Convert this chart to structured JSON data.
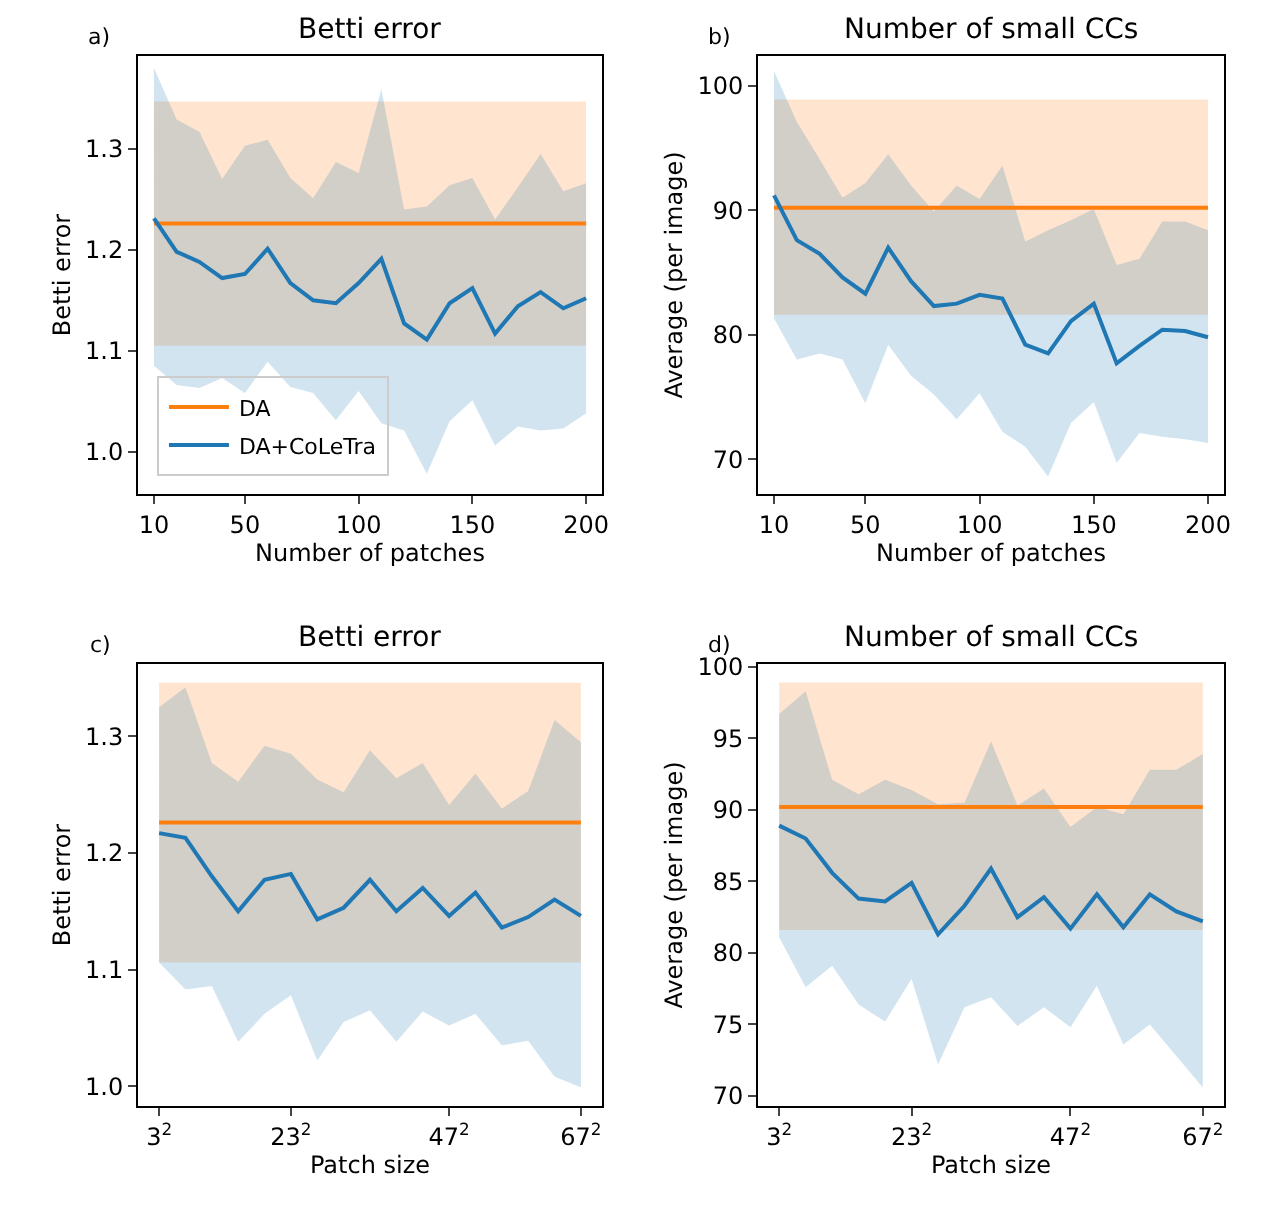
{
  "chart_data": [
    {
      "type": "line",
      "title": "Betti error",
      "xlabel": "Number of patches",
      "ylabel": "Betti error",
      "annotations": [
        "a)"
      ],
      "legend": "bottom left",
      "x": [
        10,
        20,
        30,
        40,
        50,
        60,
        70,
        80,
        90,
        100,
        110,
        120,
        130,
        140,
        150,
        160,
        170,
        180,
        190,
        200
      ],
      "xlim": [
        3,
        207
      ],
      "xticks": [
        10,
        50,
        100,
        150,
        200
      ],
      "ylim": [
        0.958,
        1.392
      ],
      "yticks": [
        {
          "value": 1.0,
          "label": "1.0"
        },
        1.1,
        1.2,
        1.3
      ],
      "series": [
        {
          "name": "DA",
          "color": "#ff7f0e",
          "values": [
            1.226,
            1.226,
            1.226,
            1.226,
            1.226,
            1.226,
            1.226,
            1.226,
            1.226,
            1.226,
            1.226,
            1.226,
            1.226,
            1.226,
            1.226,
            1.226,
            1.226,
            1.226,
            1.226,
            1.226
          ],
          "lower": [
            1.105,
            1.105,
            1.105,
            1.105,
            1.105,
            1.105,
            1.105,
            1.105,
            1.105,
            1.105,
            1.105,
            1.105,
            1.105,
            1.105,
            1.105,
            1.105,
            1.105,
            1.105,
            1.105,
            1.105
          ],
          "upper": [
            1.347,
            1.347,
            1.347,
            1.347,
            1.347,
            1.347,
            1.347,
            1.347,
            1.347,
            1.347,
            1.347,
            1.347,
            1.347,
            1.347,
            1.347,
            1.347,
            1.347,
            1.347,
            1.347,
            1.347
          ]
        },
        {
          "name": "DA+CoLeTra",
          "color": "#1f77b4",
          "values": [
            1.231,
            1.198,
            1.188,
            1.172,
            1.176,
            1.201,
            1.167,
            1.15,
            1.147,
            1.167,
            1.191,
            1.127,
            1.111,
            1.147,
            1.162,
            1.117,
            1.144,
            1.158,
            1.142,
            1.152
          ],
          "lower": [
            1.085,
            1.066,
            1.063,
            1.073,
            1.058,
            1.089,
            1.064,
            1.058,
            1.031,
            1.06,
            1.028,
            1.021,
            0.978,
            1.03,
            1.051,
            1.006,
            1.025,
            1.021,
            1.023,
            1.038
          ],
          "upper": [
            1.38,
            1.329,
            1.317,
            1.27,
            1.303,
            1.309,
            1.271,
            1.251,
            1.287,
            1.276,
            1.359,
            1.24,
            1.243,
            1.264,
            1.271,
            1.23,
            1.262,
            1.295,
            1.258,
            1.266
          ]
        }
      ]
    },
    {
      "type": "line",
      "title": "Number of small CCs",
      "xlabel": "Number of patches",
      "ylabel": "Average (per image)",
      "annotations": [
        "b)"
      ],
      "x": [
        10,
        20,
        30,
        40,
        50,
        60,
        70,
        80,
        90,
        100,
        110,
        120,
        130,
        140,
        150,
        160,
        170,
        180,
        190,
        200
      ],
      "xlim": [
        3,
        207
      ],
      "xticks": [
        10,
        50,
        100,
        150,
        200
      ],
      "ylim": [
        67.2,
        102.4
      ],
      "yticks": [
        70,
        80,
        90,
        100
      ],
      "series": [
        {
          "color": "#ff7f0e",
          "values": [
            90.2,
            90.2,
            90.2,
            90.2,
            90.2,
            90.2,
            90.2,
            90.2,
            90.2,
            90.2,
            90.2,
            90.2,
            90.2,
            90.2,
            90.2,
            90.2,
            90.2,
            90.2,
            90.2,
            90.2
          ],
          "lower": [
            81.6,
            81.6,
            81.6,
            81.6,
            81.6,
            81.6,
            81.6,
            81.6,
            81.6,
            81.6,
            81.6,
            81.6,
            81.6,
            81.6,
            81.6,
            81.6,
            81.6,
            81.6,
            81.6,
            81.6
          ],
          "upper": [
            98.9,
            98.9,
            98.9,
            98.9,
            98.9,
            98.9,
            98.9,
            98.9,
            98.9,
            98.9,
            98.9,
            98.9,
            98.9,
            98.9,
            98.9,
            98.9,
            98.9,
            98.9,
            98.9,
            98.9
          ]
        },
        {
          "color": "#1f77b4",
          "values": [
            91.2,
            87.6,
            86.5,
            84.6,
            83.3,
            87.0,
            84.3,
            82.3,
            82.5,
            83.2,
            82.9,
            79.2,
            78.5,
            81.1,
            82.5,
            77.7,
            79.1,
            80.4,
            80.3,
            79.8
          ],
          "lower": [
            81.3,
            78.0,
            78.5,
            78.0,
            74.5,
            79.2,
            76.7,
            75.2,
            73.2,
            75.3,
            72.2,
            71.0,
            68.6,
            72.9,
            74.6,
            69.7,
            72.1,
            71.8,
            71.6,
            71.3
          ],
          "upper": [
            101.2,
            97.1,
            94.1,
            91.0,
            92.2,
            94.5,
            92.0,
            89.9,
            92.0,
            90.9,
            93.6,
            87.5,
            88.4,
            89.2,
            90.1,
            85.6,
            86.1,
            89.1,
            89.1,
            88.4
          ]
        }
      ]
    },
    {
      "type": "line",
      "title": "Betti error",
      "xlabel": "Patch size",
      "ylabel": "Betti error",
      "annotations": [
        "c)"
      ],
      "categories": [
        "3$^{2}$",
        null,
        null,
        null,
        null,
        "23$^{2}$",
        null,
        null,
        null,
        null,
        null,
        "47$^{2}$",
        null,
        null,
        null,
        null,
        "67$^{2}$"
      ],
      "ylim": [
        0.983,
        1.362
      ],
      "yticks": [
        {
          "value": 1.0,
          "label": "1.0"
        },
        1.1,
        1.2,
        1.3
      ],
      "series": [
        {
          "color": "#ff7f0e",
          "values": [
            1.226,
            1.226,
            1.226,
            1.226,
            1.226,
            1.226,
            1.226,
            1.226,
            1.226,
            1.226,
            1.226,
            1.226,
            1.226,
            1.226,
            1.226,
            1.226,
            1.226
          ],
          "lower": [
            1.106,
            1.106,
            1.106,
            1.106,
            1.106,
            1.106,
            1.106,
            1.106,
            1.106,
            1.106,
            1.106,
            1.106,
            1.106,
            1.106,
            1.106,
            1.106,
            1.106
          ],
          "upper": [
            1.346,
            1.346,
            1.346,
            1.346,
            1.346,
            1.346,
            1.346,
            1.346,
            1.346,
            1.346,
            1.346,
            1.346,
            1.346,
            1.346,
            1.346,
            1.346,
            1.346
          ]
        },
        {
          "color": "#1f77b4",
          "values": [
            1.217,
            1.213,
            1.18,
            1.15,
            1.177,
            1.182,
            1.143,
            1.153,
            1.177,
            1.15,
            1.17,
            1.146,
            1.166,
            1.136,
            1.145,
            1.16,
            1.146
          ],
          "lower": [
            1.106,
            1.083,
            1.086,
            1.038,
            1.062,
            1.078,
            1.022,
            1.055,
            1.065,
            1.038,
            1.064,
            1.052,
            1.062,
            1.035,
            1.039,
            1.008,
            0.999
          ],
          "upper": [
            1.325,
            1.342,
            1.277,
            1.261,
            1.292,
            1.285,
            1.263,
            1.252,
            1.288,
            1.264,
            1.277,
            1.241,
            1.268,
            1.238,
            1.253,
            1.314,
            1.295
          ]
        }
      ]
    },
    {
      "type": "line",
      "title": "Number of small CCs",
      "xlabel": "Patch size",
      "ylabel": "Average (per image)",
      "annotations": [
        "d)"
      ],
      "categories": [
        "3$^{2}$",
        null,
        null,
        null,
        null,
        "23$^{2}$",
        null,
        null,
        null,
        null,
        null,
        "47$^{2}$",
        null,
        null,
        null,
        null,
        "67$^{2}$"
      ],
      "ylim": [
        69.3,
        100.2
      ],
      "yticks": [
        70,
        75,
        80,
        85,
        90,
        95,
        100
      ],
      "series": [
        {
          "color": "#ff7f0e",
          "values": [
            90.2,
            90.2,
            90.2,
            90.2,
            90.2,
            90.2,
            90.2,
            90.2,
            90.2,
            90.2,
            90.2,
            90.2,
            90.2,
            90.2,
            90.2,
            90.2,
            90.2
          ],
          "lower": [
            81.6,
            81.6,
            81.6,
            81.6,
            81.6,
            81.6,
            81.6,
            81.6,
            81.6,
            81.6,
            81.6,
            81.6,
            81.6,
            81.6,
            81.6,
            81.6,
            81.6
          ],
          "upper": [
            98.9,
            98.9,
            98.9,
            98.9,
            98.9,
            98.9,
            98.9,
            98.9,
            98.9,
            98.9,
            98.9,
            98.9,
            98.9,
            98.9,
            98.9,
            98.9,
            98.9
          ]
        },
        {
          "color": "#1f77b4",
          "values": [
            88.9,
            88.0,
            85.6,
            83.8,
            83.6,
            84.9,
            81.3,
            83.3,
            85.9,
            82.5,
            83.9,
            81.7,
            84.1,
            81.8,
            84.1,
            82.9,
            82.2
          ],
          "lower": [
            81.1,
            77.6,
            79.1,
            76.4,
            75.2,
            78.2,
            72.2,
            76.2,
            76.9,
            74.9,
            76.2,
            74.8,
            77.7,
            73.6,
            75.0,
            72.8,
            70.6
          ],
          "upper": [
            96.7,
            98.3,
            92.1,
            91.1,
            92.1,
            91.4,
            90.4,
            90.5,
            94.8,
            90.3,
            91.5,
            88.8,
            90.2,
            89.7,
            92.8,
            92.8,
            93.9
          ]
        }
      ]
    }
  ]
}
